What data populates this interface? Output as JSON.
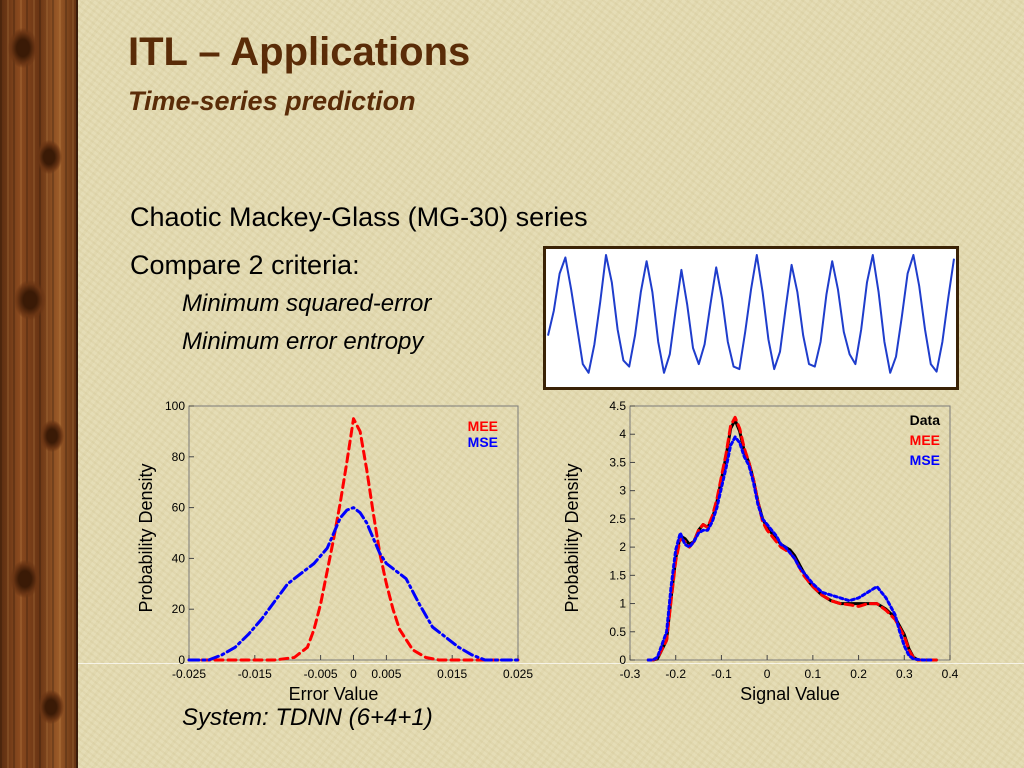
{
  "slide": {
    "title": "ITL – Applications",
    "subtitle": "Time-series prediction",
    "bullet1": "Chaotic Mackey-Glass (MG-30) series",
    "bullet2": "Compare 2 criteria:",
    "sub1": "Minimum squared-error",
    "sub2": "Minimum error entropy",
    "footer": "System: TDNN (6+4+1)"
  },
  "colors": {
    "title": "#5a2c08",
    "mee": "#ff0000",
    "mse": "#0000ff",
    "data": "#000000",
    "series": "#1f3dcc"
  },
  "series_plot": {
    "y": [
      0.35,
      0.55,
      0.85,
      0.98,
      0.72,
      0.42,
      0.12,
      0.05,
      0.28,
      0.62,
      1.0,
      0.78,
      0.4,
      0.15,
      0.1,
      0.35,
      0.7,
      0.95,
      0.7,
      0.3,
      0.05,
      0.2,
      0.55,
      0.88,
      0.6,
      0.25,
      0.12,
      0.28,
      0.6,
      0.9,
      0.65,
      0.3,
      0.1,
      0.08,
      0.38,
      0.72,
      1.0,
      0.7,
      0.32,
      0.08,
      0.22,
      0.58,
      0.92,
      0.7,
      0.35,
      0.12,
      0.1,
      0.3,
      0.68,
      0.95,
      0.72,
      0.38,
      0.2,
      0.12,
      0.4,
      0.78,
      1.0,
      0.7,
      0.3,
      0.05,
      0.18,
      0.5,
      0.85,
      1.0,
      0.75,
      0.4,
      0.12,
      0.06,
      0.3,
      0.65,
      0.97
    ]
  },
  "chart_data": [
    {
      "type": "line",
      "xlabel": "Error Value",
      "ylabel": "Probability Density",
      "xlim": [
        -0.025,
        0.025
      ],
      "ylim": [
        0,
        100
      ],
      "xticks": [
        "-0.025",
        "-0.015",
        "-0.005",
        "0",
        "0.005",
        "0.015",
        "0.025"
      ],
      "xtick_values": [
        -0.025,
        -0.015,
        -0.005,
        0,
        0.005,
        0.015,
        0.025
      ],
      "yticks": [
        "0",
        "20",
        "40",
        "60",
        "80",
        "100"
      ],
      "ytick_values": [
        0,
        20,
        40,
        60,
        80,
        100
      ],
      "legend_position": "top-right",
      "series": [
        {
          "name": "MEE",
          "color": "#ff0000",
          "style": "dashed",
          "x": [
            -0.025,
            -0.012,
            -0.009,
            -0.007,
            -0.006,
            -0.005,
            -0.004,
            -0.003,
            -0.002,
            -0.001,
            0,
            0.001,
            0.002,
            0.003,
            0.004,
            0.005,
            0.006,
            0.007,
            0.009,
            0.011,
            0.013,
            0.025
          ],
          "y": [
            0,
            0,
            1,
            5,
            12,
            22,
            35,
            48,
            62,
            78,
            95,
            90,
            75,
            58,
            42,
            30,
            20,
            12,
            4,
            1,
            0,
            0
          ]
        },
        {
          "name": "MSE",
          "color": "#0000ff",
          "style": "dashdot",
          "x": [
            -0.025,
            -0.022,
            -0.02,
            -0.018,
            -0.016,
            -0.014,
            -0.012,
            -0.01,
            -0.008,
            -0.006,
            -0.004,
            -0.003,
            -0.002,
            -0.001,
            0,
            0.001,
            0.002,
            0.003,
            0.004,
            0.005,
            0.006,
            0.008,
            0.01,
            0.012,
            0.014,
            0.016,
            0.018,
            0.02,
            0.022,
            0.025
          ],
          "y": [
            0,
            0,
            2,
            5,
            10,
            16,
            23,
            30,
            34,
            38,
            44,
            50,
            56,
            59,
            60,
            58,
            54,
            48,
            42,
            38,
            36,
            32,
            22,
            13,
            9,
            5,
            2,
            0,
            0,
            0
          ]
        }
      ]
    },
    {
      "type": "line",
      "xlabel": "Signal Value",
      "ylabel": "Probability Density",
      "xlim": [
        -0.3,
        0.4
      ],
      "ylim": [
        0,
        4.5
      ],
      "xticks": [
        "-0.3",
        "-0.2",
        "-0.1",
        "0",
        "0.1",
        "0.2",
        "0.3",
        "0.4"
      ],
      "xtick_values": [
        -0.3,
        -0.2,
        -0.1,
        0,
        0.1,
        0.2,
        0.3,
        0.4
      ],
      "yticks": [
        "0",
        "0.5",
        "1",
        "1.5",
        "2",
        "2.5",
        "3",
        "3.5",
        "4",
        "4.5"
      ],
      "ytick_values": [
        0,
        0.5,
        1,
        1.5,
        2,
        2.5,
        3,
        3.5,
        4,
        4.5
      ],
      "legend_position": "top-right",
      "series": [
        {
          "name": "Data",
          "color": "#000000",
          "style": "solid",
          "x": [
            -0.26,
            -0.25,
            -0.24,
            -0.22,
            -0.21,
            -0.2,
            -0.19,
            -0.18,
            -0.17,
            -0.16,
            -0.15,
            -0.14,
            -0.13,
            -0.12,
            -0.11,
            -0.1,
            -0.09,
            -0.08,
            -0.07,
            -0.06,
            -0.05,
            -0.04,
            -0.03,
            -0.02,
            -0.01,
            0,
            0.01,
            0.02,
            0.03,
            0.04,
            0.05,
            0.06,
            0.07,
            0.08,
            0.09,
            0.1,
            0.12,
            0.14,
            0.16,
            0.18,
            0.2,
            0.22,
            0.24,
            0.26,
            0.28,
            0.3,
            0.31,
            0.32,
            0.33,
            0.35,
            0.37
          ],
          "y": [
            0,
            0,
            0.02,
            0.35,
            1.1,
            1.8,
            2.2,
            2.15,
            2.05,
            2.1,
            2.3,
            2.4,
            2.35,
            2.5,
            2.8,
            3.2,
            3.6,
            4.1,
            4.25,
            4.05,
            3.7,
            3.5,
            3.2,
            2.8,
            2.5,
            2.35,
            2.25,
            2.15,
            2.05,
            2.0,
            1.95,
            1.85,
            1.7,
            1.55,
            1.4,
            1.3,
            1.15,
            1.05,
            1.0,
            1.0,
            1.0,
            1.0,
            1.0,
            0.9,
            0.75,
            0.45,
            0.2,
            0.05,
            0,
            0,
            0
          ]
        },
        {
          "name": "MEE",
          "color": "#ff0000",
          "style": "dashed",
          "x": [
            -0.26,
            -0.25,
            -0.24,
            -0.22,
            -0.21,
            -0.2,
            -0.19,
            -0.18,
            -0.17,
            -0.16,
            -0.15,
            -0.14,
            -0.13,
            -0.12,
            -0.11,
            -0.1,
            -0.09,
            -0.08,
            -0.07,
            -0.06,
            -0.05,
            -0.04,
            -0.03,
            -0.02,
            -0.01,
            0,
            0.01,
            0.02,
            0.03,
            0.04,
            0.05,
            0.06,
            0.07,
            0.08,
            0.09,
            0.1,
            0.12,
            0.14,
            0.16,
            0.18,
            0.2,
            0.22,
            0.24,
            0.26,
            0.28,
            0.3,
            0.31,
            0.32,
            0.33,
            0.35,
            0.37
          ],
          "y": [
            0,
            0,
            0.03,
            0.35,
            1.05,
            1.75,
            2.15,
            2.1,
            2.0,
            2.1,
            2.3,
            2.4,
            2.35,
            2.55,
            2.85,
            3.25,
            3.65,
            4.15,
            4.3,
            4.1,
            3.75,
            3.5,
            3.2,
            2.8,
            2.45,
            2.3,
            2.2,
            2.1,
            2.0,
            1.95,
            1.9,
            1.8,
            1.65,
            1.5,
            1.4,
            1.3,
            1.15,
            1.05,
            1.0,
            0.98,
            0.95,
            1.0,
            1.0,
            0.88,
            0.72,
            0.42,
            0.18,
            0.04,
            0,
            0,
            0
          ]
        },
        {
          "name": "MSE",
          "color": "#0000ff",
          "style": "dotted",
          "x": [
            -0.26,
            -0.25,
            -0.24,
            -0.22,
            -0.21,
            -0.2,
            -0.19,
            -0.18,
            -0.17,
            -0.16,
            -0.15,
            -0.14,
            -0.13,
            -0.12,
            -0.11,
            -0.1,
            -0.09,
            -0.08,
            -0.07,
            -0.06,
            -0.05,
            -0.04,
            -0.03,
            -0.02,
            -0.01,
            0,
            0.01,
            0.02,
            0.03,
            0.04,
            0.05,
            0.06,
            0.07,
            0.08,
            0.09,
            0.1,
            0.12,
            0.14,
            0.16,
            0.18,
            0.2,
            0.22,
            0.24,
            0.26,
            0.28,
            0.29,
            0.3,
            0.31,
            0.32,
            0.34,
            0.36
          ],
          "y": [
            0,
            0,
            0.05,
            0.5,
            1.3,
            1.95,
            2.25,
            2.05,
            2.0,
            2.1,
            2.25,
            2.3,
            2.3,
            2.45,
            2.7,
            3.05,
            3.4,
            3.8,
            3.95,
            3.85,
            3.6,
            3.45,
            3.15,
            2.75,
            2.5,
            2.4,
            2.3,
            2.2,
            2.05,
            2.0,
            1.9,
            1.8,
            1.65,
            1.55,
            1.45,
            1.35,
            1.2,
            1.15,
            1.1,
            1.05,
            1.1,
            1.2,
            1.3,
            1.1,
            0.8,
            0.5,
            0.25,
            0.08,
            0.02,
            0,
            0
          ]
        }
      ]
    }
  ]
}
